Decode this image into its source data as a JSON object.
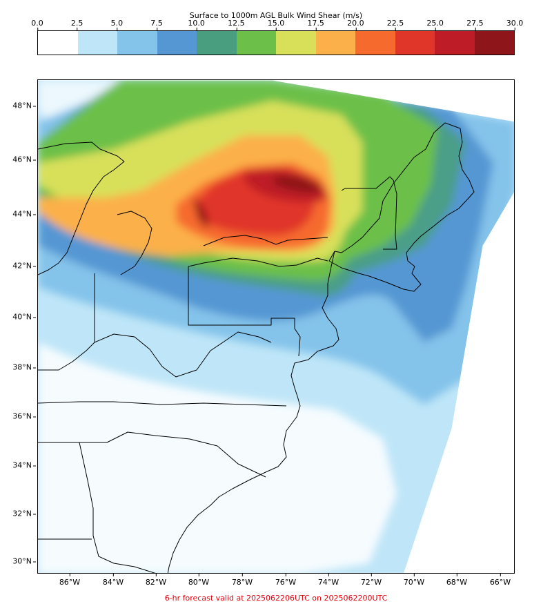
{
  "colorbar": {
    "title": "Surface to 1000m AGL Bulk Wind Shear (m/s)",
    "ticks": [
      "0.0",
      "2.5",
      "5.0",
      "7.5",
      "10.0",
      "12.5",
      "15.0",
      "17.5",
      "20.0",
      "22.5",
      "25.0",
      "27.5",
      "30.0"
    ],
    "colors": [
      "#ffffff",
      "#bfe6f8",
      "#84c3ea",
      "#5497d3",
      "#4a9e80",
      "#6cc04a",
      "#d8e05a",
      "#fbb04a",
      "#f66a2e",
      "#e03629",
      "#be1d28",
      "#8e1519"
    ]
  },
  "axes": {
    "lat_labels": [
      "48°N",
      "46°N",
      "44°N",
      "42°N",
      "40°N",
      "38°N",
      "36°N",
      "34°N",
      "32°N",
      "30°N"
    ],
    "lon_labels": [
      "86°W",
      "84°W",
      "82°W",
      "80°W",
      "78°W",
      "76°W",
      "74°W",
      "72°W",
      "70°W",
      "68°W",
      "66°W"
    ]
  },
  "footer": "6-hr forecast valid at 2025062206UTC on 2025062200UTC"
}
